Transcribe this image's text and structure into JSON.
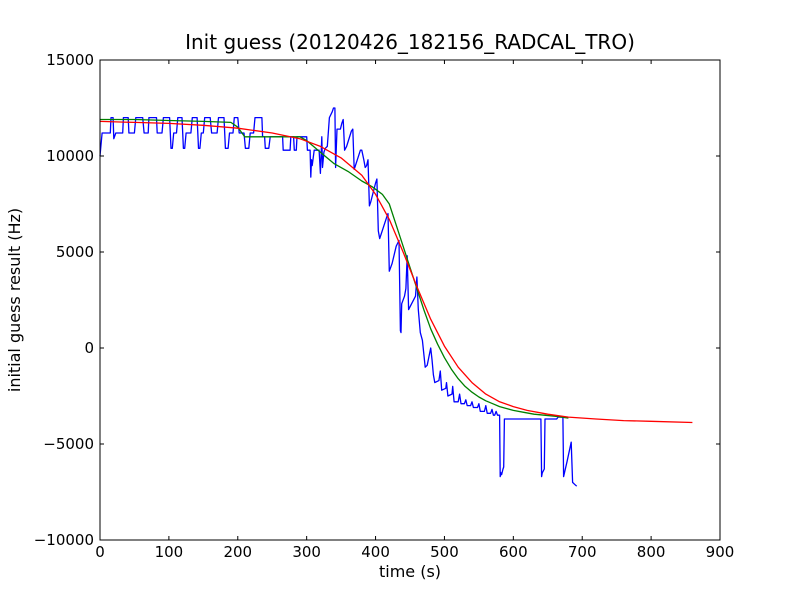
{
  "chart_data": {
    "type": "line",
    "title": "Init guess (20120426_182156_RADCAL_TRO)",
    "xlabel": "time (s)",
    "ylabel": "initial guess result (Hz)",
    "xlim": [
      0,
      900
    ],
    "ylim": [
      -10000,
      15000
    ],
    "xticks": [
      0,
      100,
      200,
      300,
      400,
      500,
      600,
      700,
      800,
      900
    ],
    "xtick_labels": [
      "0",
      "100",
      "200",
      "300",
      "400",
      "500",
      "600",
      "700",
      "800",
      "900"
    ],
    "yticks": [
      -10000,
      -5000,
      0,
      5000,
      10000,
      15000
    ],
    "ytick_labels": [
      "−10000",
      "−5000",
      "0",
      "5000",
      "10000",
      "15000"
    ],
    "grid": false,
    "legend": "none",
    "series": [
      {
        "color": "#0000ff",
        "points": [
          [
            0,
            10000
          ],
          [
            3,
            11200
          ],
          [
            15,
            11200
          ],
          [
            16,
            12000
          ],
          [
            19,
            12000
          ],
          [
            20,
            10900
          ],
          [
            23,
            11200
          ],
          [
            33,
            11200
          ],
          [
            34,
            12000
          ],
          [
            41,
            12000
          ],
          [
            42,
            11200
          ],
          [
            50,
            11200
          ],
          [
            52,
            12000
          ],
          [
            62,
            12000
          ],
          [
            64,
            11200
          ],
          [
            70,
            11200
          ],
          [
            71,
            12000
          ],
          [
            82,
            12000
          ],
          [
            83,
            11200
          ],
          [
            90,
            11200
          ],
          [
            92,
            12000
          ],
          [
            101,
            12000
          ],
          [
            103,
            10400
          ],
          [
            105,
            10400
          ],
          [
            107,
            11200
          ],
          [
            111,
            11200
          ],
          [
            113,
            12000
          ],
          [
            119,
            12000
          ],
          [
            121,
            10400
          ],
          [
            123,
            10400
          ],
          [
            125,
            11200
          ],
          [
            132,
            11200
          ],
          [
            134,
            12000
          ],
          [
            141,
            12000
          ],
          [
            143,
            10400
          ],
          [
            145,
            10400
          ],
          [
            147,
            11200
          ],
          [
            150,
            11200
          ],
          [
            152,
            12000
          ],
          [
            160,
            12000
          ],
          [
            162,
            11200
          ],
          [
            170,
            11200
          ],
          [
            172,
            12000
          ],
          [
            180,
            12000
          ],
          [
            182,
            10400
          ],
          [
            186,
            10400
          ],
          [
            188,
            11200
          ],
          [
            193,
            11200
          ],
          [
            195,
            12000
          ],
          [
            200,
            12000
          ],
          [
            202,
            11200
          ],
          [
            209,
            11200
          ],
          [
            211,
            10400
          ],
          [
            216,
            10400
          ],
          [
            218,
            11200
          ],
          [
            223,
            11200
          ],
          [
            225,
            12000
          ],
          [
            235,
            12000
          ],
          [
            236,
            11000
          ],
          [
            239,
            11000
          ],
          [
            240,
            10400
          ],
          [
            245,
            10400
          ],
          [
            247,
            11000
          ],
          [
            265,
            11000
          ],
          [
            266,
            10300
          ],
          [
            276,
            10300
          ],
          [
            277,
            11000
          ],
          [
            281,
            11000
          ],
          [
            282,
            10300
          ],
          [
            285,
            10300
          ],
          [
            286,
            11000
          ],
          [
            300,
            11000
          ],
          [
            301,
            10300
          ],
          [
            305,
            10300
          ],
          [
            306,
            8900
          ],
          [
            307,
            9800
          ],
          [
            308,
            9500
          ],
          [
            311,
            10300
          ],
          [
            318,
            10300
          ],
          [
            320,
            9100
          ],
          [
            322,
            11000
          ],
          [
            323,
            9400
          ],
          [
            325,
            10200
          ],
          [
            327,
            10400
          ],
          [
            330,
            10500
          ],
          [
            333,
            12000
          ],
          [
            337,
            12300
          ],
          [
            339,
            12500
          ],
          [
            341,
            12500
          ],
          [
            342,
            9400
          ],
          [
            344,
            11400
          ],
          [
            349,
            11400
          ],
          [
            351,
            11700
          ],
          [
            353,
            11900
          ],
          [
            355,
            10300
          ],
          [
            358,
            10500
          ],
          [
            365,
            11300
          ],
          [
            367,
            11400
          ],
          [
            369,
            9300
          ],
          [
            378,
            10300
          ],
          [
            380,
            10300
          ],
          [
            383,
            9800
          ],
          [
            385,
            9400
          ],
          [
            387,
            9500
          ],
          [
            389,
            9800
          ],
          [
            391,
            7400
          ],
          [
            393,
            7600
          ],
          [
            400,
            8600
          ],
          [
            402,
            8800
          ],
          [
            404,
            6100
          ],
          [
            406,
            5700
          ],
          [
            416,
            6800
          ],
          [
            418,
            7000
          ],
          [
            420,
            4000
          ],
          [
            424,
            4400
          ],
          [
            430,
            5300
          ],
          [
            434,
            5600
          ],
          [
            436,
            900
          ],
          [
            437,
            800
          ],
          [
            438,
            2300
          ],
          [
            442,
            2700
          ],
          [
            444,
            3100
          ],
          [
            446,
            4800
          ],
          [
            448,
            2000
          ],
          [
            458,
            2700
          ],
          [
            460,
            3700
          ],
          [
            462,
            2000
          ],
          [
            465,
            800
          ],
          [
            468,
            400
          ],
          [
            472,
            -1000
          ],
          [
            475,
            -900
          ],
          [
            480,
            0
          ],
          [
            482,
            -600
          ],
          [
            484,
            -1400
          ],
          [
            486,
            -1800
          ],
          [
            492,
            -1700
          ],
          [
            494,
            -1200
          ],
          [
            496,
            -2200
          ],
          [
            502,
            -2100
          ],
          [
            503,
            -1800
          ],
          [
            505,
            -2500
          ],
          [
            511,
            -2400
          ],
          [
            512,
            -2000
          ],
          [
            514,
            -2800
          ],
          [
            520,
            -2800
          ],
          [
            522,
            -2400
          ],
          [
            524,
            -2900
          ],
          [
            529,
            -2900
          ],
          [
            531,
            -2700
          ],
          [
            533,
            -3000
          ],
          [
            538,
            -3000
          ],
          [
            540,
            -2800
          ],
          [
            542,
            -3100
          ],
          [
            548,
            -3100
          ],
          [
            550,
            -2900
          ],
          [
            552,
            -3300
          ],
          [
            558,
            -3300
          ],
          [
            560,
            -3000
          ],
          [
            562,
            -3400
          ],
          [
            567,
            -3400
          ],
          [
            569,
            -3200
          ],
          [
            571,
            -3500
          ],
          [
            573,
            -3500
          ],
          [
            575,
            -3300
          ],
          [
            577,
            -3500
          ],
          [
            580,
            -3500
          ],
          [
            581,
            -6700
          ],
          [
            582,
            -6500
          ],
          [
            583,
            -6600
          ],
          [
            585,
            -6300
          ],
          [
            586,
            -6200
          ],
          [
            587,
            -3700
          ],
          [
            590,
            -3700
          ],
          [
            640,
            -3700
          ],
          [
            641,
            -6700
          ],
          [
            642,
            -6500
          ],
          [
            645,
            -6300
          ],
          [
            646,
            -3700
          ],
          [
            663,
            -3700
          ],
          [
            665,
            -3600
          ],
          [
            672,
            -3600
          ],
          [
            673,
            -6700
          ],
          [
            678,
            -5900
          ],
          [
            684,
            -4900
          ],
          [
            686,
            -7000
          ],
          [
            689,
            -7100
          ],
          [
            692,
            -7200
          ]
        ]
      },
      {
        "color": "#008000",
        "points": [
          [
            0,
            11900
          ],
          [
            50,
            11900
          ],
          [
            100,
            11850
          ],
          [
            150,
            11800
          ],
          [
            190,
            11750
          ],
          [
            200,
            11500
          ],
          [
            210,
            11000
          ],
          [
            250,
            11000
          ],
          [
            290,
            11000
          ],
          [
            300,
            10800
          ],
          [
            320,
            10200
          ],
          [
            340,
            9600
          ],
          [
            360,
            9200
          ],
          [
            380,
            8700
          ],
          [
            395,
            8400
          ],
          [
            410,
            8000
          ],
          [
            420,
            7500
          ],
          [
            430,
            6400
          ],
          [
            440,
            5300
          ],
          [
            450,
            4200
          ],
          [
            460,
            3100
          ],
          [
            470,
            2000
          ],
          [
            480,
            1000
          ],
          [
            490,
            200
          ],
          [
            500,
            -500
          ],
          [
            510,
            -1100
          ],
          [
            520,
            -1600
          ],
          [
            530,
            -2000
          ],
          [
            540,
            -2300
          ],
          [
            550,
            -2550
          ],
          [
            560,
            -2750
          ],
          [
            570,
            -2900
          ],
          [
            580,
            -3050
          ],
          [
            590,
            -3150
          ],
          [
            600,
            -3250
          ],
          [
            615,
            -3350
          ],
          [
            630,
            -3450
          ],
          [
            645,
            -3500
          ],
          [
            660,
            -3550
          ],
          [
            670,
            -3600
          ],
          [
            680,
            -3650
          ]
        ]
      },
      {
        "color": "#ff0000",
        "points": [
          [
            0,
            11800
          ],
          [
            50,
            11750
          ],
          [
            100,
            11700
          ],
          [
            150,
            11600
          ],
          [
            200,
            11450
          ],
          [
            250,
            11200
          ],
          [
            290,
            10900
          ],
          [
            320,
            10500
          ],
          [
            350,
            9900
          ],
          [
            380,
            9000
          ],
          [
            400,
            8000
          ],
          [
            420,
            6700
          ],
          [
            440,
            5000
          ],
          [
            460,
            3200
          ],
          [
            480,
            1500
          ],
          [
            500,
            100
          ],
          [
            520,
            -1000
          ],
          [
            540,
            -1800
          ],
          [
            560,
            -2400
          ],
          [
            580,
            -2800
          ],
          [
            600,
            -3050
          ],
          [
            620,
            -3250
          ],
          [
            650,
            -3450
          ],
          [
            680,
            -3600
          ],
          [
            720,
            -3700
          ],
          [
            760,
            -3780
          ],
          [
            800,
            -3820
          ],
          [
            860,
            -3880
          ]
        ]
      }
    ]
  }
}
